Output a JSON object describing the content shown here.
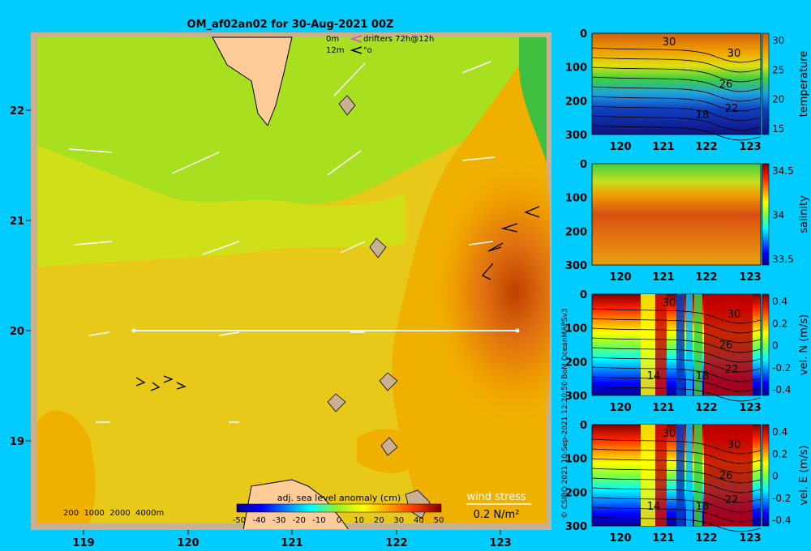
{
  "title": "OM_af02an02 for 30-Aug-2021 00Z",
  "legend": {
    "line1_depth": "0m",
    "line1_label": "drifters 72h@12h",
    "line2_depth": "12m",
    "line2_label": "\"o"
  },
  "map": {
    "x_ticks": [
      "119",
      "120",
      "121",
      "122",
      "123"
    ],
    "y_ticks": [
      "22",
      "21",
      "20",
      "19"
    ],
    "bathymetry_label": "200  1000  2000  4000m",
    "colorbar_title": "adj. sea level anomaly (cm)",
    "colorbar_ticks": [
      "-50",
      "-40",
      "-30",
      "-20",
      "-10",
      "0",
      "10",
      "20",
      "30",
      "40",
      "50"
    ],
    "wind_title": "wind stress",
    "wind_scale": "0.2 N/m²"
  },
  "sections": [
    {
      "ylabel": "temperature",
      "cbar_ticks": [
        "30",
        "25",
        "20",
        "15"
      ],
      "contour_labels": [
        "30",
        "30",
        "26",
        "22",
        "18"
      ]
    },
    {
      "ylabel": "salinity",
      "cbar_ticks": [
        "34.5",
        "34",
        "33.5"
      ],
      "contour_labels": []
    },
    {
      "ylabel": "vel. N (m/s)",
      "cbar_ticks": [
        "0.4",
        "0.2",
        "0",
        "-0.2",
        "-0.4"
      ],
      "contour_labels": [
        "30",
        "30",
        "26",
        "22",
        "18",
        "14"
      ]
    },
    {
      "ylabel": "vel. E (m/s)",
      "cbar_ticks": [
        "0.4",
        "0.2",
        "0",
        "-0.2",
        "-0.4"
      ],
      "contour_labels": [
        "30",
        "30",
        "26",
        "22",
        "18",
        "14"
      ]
    }
  ],
  "section_x_ticks": [
    "120",
    "121",
    "122",
    "123"
  ],
  "section_y_ticks": [
    "0",
    "100",
    "200",
    "300"
  ],
  "credit": "© CSIRO 2021   10-Sep-2021 12:20:50 BoM OceanMAPSv3"
}
